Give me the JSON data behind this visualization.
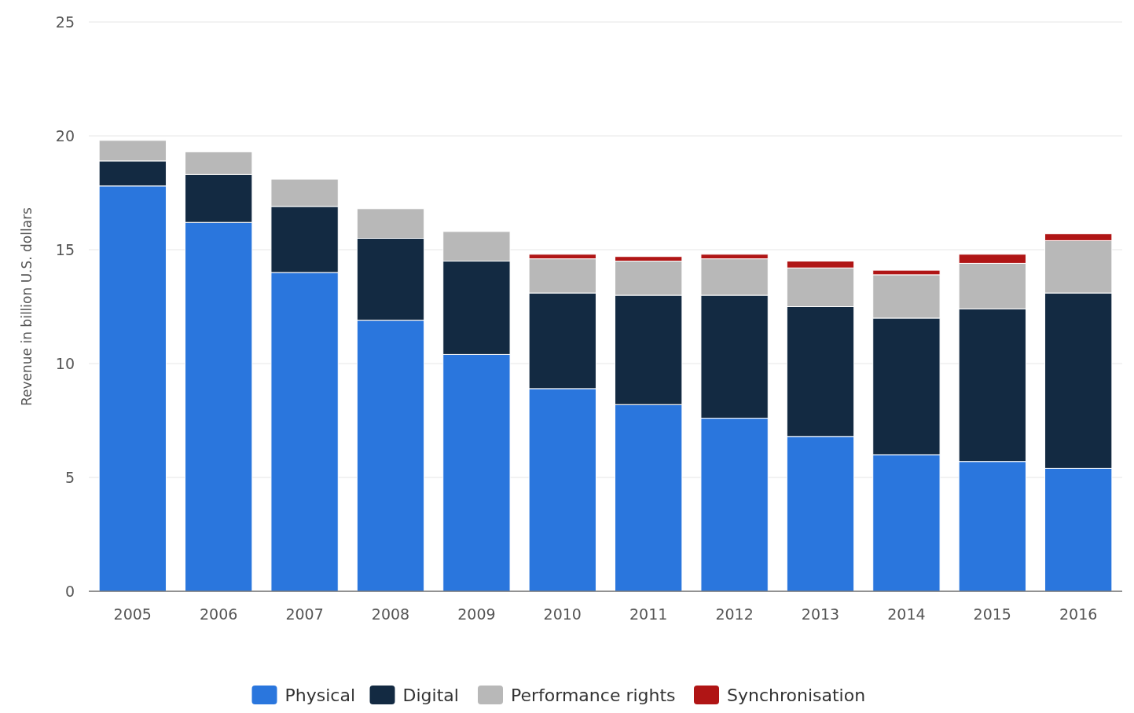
{
  "chart_data": {
    "type": "bar",
    "stacked": true,
    "ylabel": "Revenue in billion U.S. dollars",
    "categories": [
      "2005",
      "2006",
      "2007",
      "2008",
      "2009",
      "2010",
      "2011",
      "2012",
      "2013",
      "2014",
      "2015",
      "2016"
    ],
    "series": [
      {
        "name": "Physical",
        "color": "#2a76dd",
        "values": [
          17.8,
          16.2,
          14.0,
          11.9,
          10.4,
          8.9,
          8.2,
          7.6,
          6.8,
          6.0,
          5.7,
          5.4
        ]
      },
      {
        "name": "Digital",
        "color": "#132a42",
        "values": [
          1.1,
          2.1,
          2.9,
          3.6,
          4.1,
          4.2,
          4.8,
          5.4,
          5.7,
          6.0,
          6.7,
          7.7
        ]
      },
      {
        "name": "Performance rights",
        "color": "#b8b8b8",
        "values": [
          0.9,
          1.0,
          1.2,
          1.3,
          1.3,
          1.5,
          1.5,
          1.6,
          1.7,
          1.9,
          2.0,
          2.3
        ]
      },
      {
        "name": "Synchronisation",
        "color": "#b01515",
        "values": [
          null,
          null,
          null,
          null,
          null,
          0.2,
          0.2,
          0.2,
          0.3,
          0.2,
          0.4,
          0.3
        ]
      }
    ],
    "ylim": [
      0,
      25
    ],
    "yticks": [
      0,
      5,
      10,
      15,
      20,
      25
    ],
    "grid": "y",
    "legend": "bottom"
  }
}
